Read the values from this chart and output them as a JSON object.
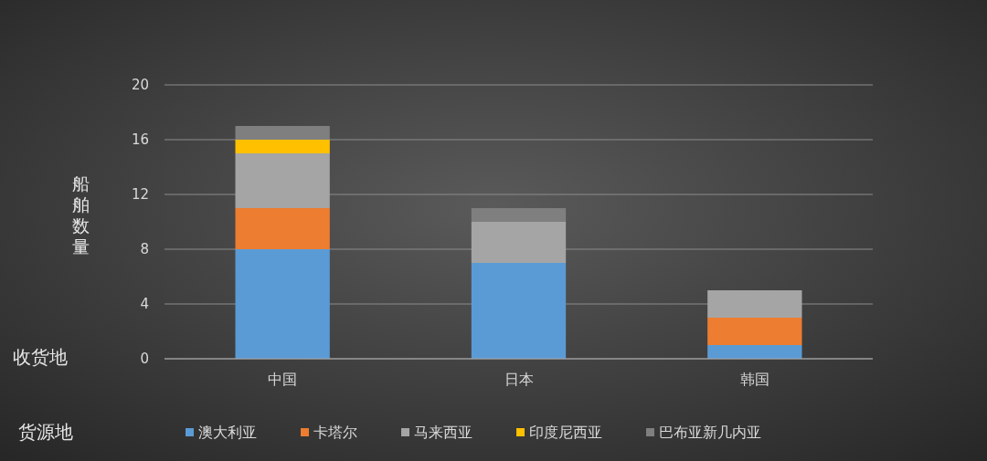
{
  "chart_data": {
    "type": "bar",
    "stacked": true,
    "ylabel": "船舶数量",
    "xlabel": "收货地",
    "legend_title": "货源地",
    "categories": [
      "中国",
      "日本",
      "韩国"
    ],
    "series": [
      {
        "name": "澳大利亚",
        "color": "#5b9bd5",
        "values": [
          8,
          7,
          1
        ]
      },
      {
        "name": "卡塔尔",
        "color": "#ed7d31",
        "values": [
          3,
          0,
          2
        ]
      },
      {
        "name": "马来西亚",
        "color": "#a5a5a5",
        "values": [
          4,
          3,
          2
        ]
      },
      {
        "name": "印度尼西亚",
        "color": "#ffc000",
        "values": [
          1,
          0,
          0
        ]
      },
      {
        "name": "巴布亚新几内亚",
        "color": "#7f7f7f",
        "values": [
          1,
          1,
          0
        ]
      }
    ],
    "ylim": [
      0,
      20
    ],
    "yticks": [
      0,
      4,
      8,
      12,
      16,
      20
    ],
    "grid": "y",
    "legend": "bottom"
  }
}
